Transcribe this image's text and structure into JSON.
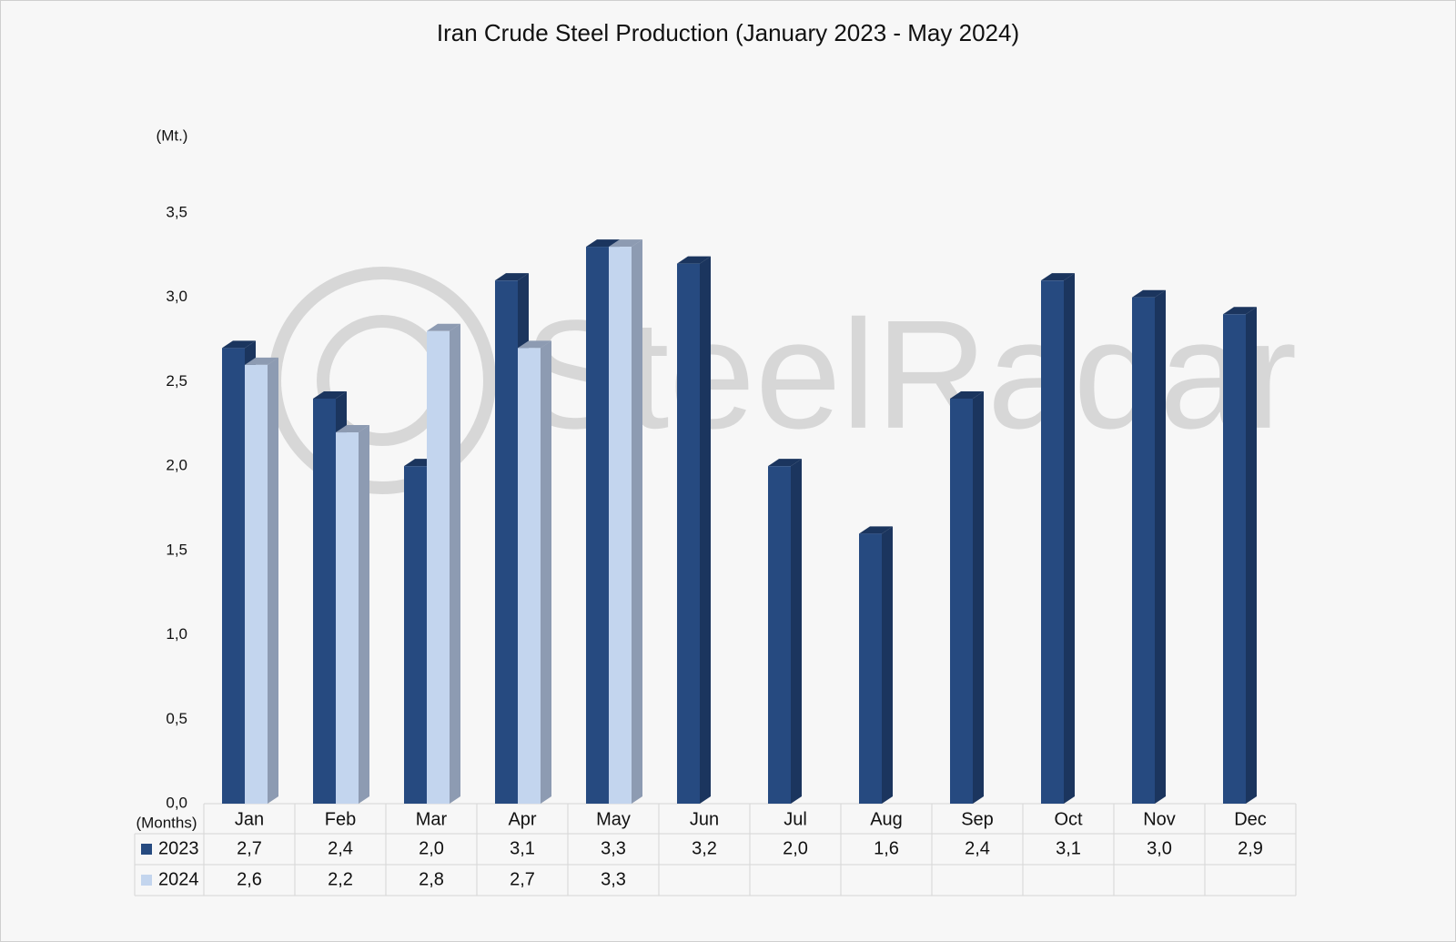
{
  "chart_data": {
    "type": "bar3d",
    "title": "Iran Crude Steel Production (January 2023 - May 2024)",
    "y_axis_label": "(Mt.)",
    "x_axis_label": "(Months)",
    "watermark": "SteelRadar",
    "categories": [
      "Jan",
      "Feb",
      "Mar",
      "Apr",
      "May",
      "Jun",
      "Jul",
      "Aug",
      "Sep",
      "Oct",
      "Nov",
      "Dec"
    ],
    "series": [
      {
        "name": "2023",
        "color": "#264a80",
        "side_color": "#1b355e",
        "values": [
          2.7,
          2.4,
          2.0,
          3.1,
          3.3,
          3.2,
          2.0,
          1.6,
          2.4,
          3.1,
          3.0,
          2.9
        ],
        "value_labels": [
          "2,7",
          "2,4",
          "2,0",
          "3,1",
          "3,3",
          "3,2",
          "2,0",
          "1,6",
          "2,4",
          "3,1",
          "3,0",
          "2,9"
        ]
      },
      {
        "name": "2024",
        "color": "#c3d5ee",
        "side_color": "#8d9bb2",
        "values": [
          2.6,
          2.2,
          2.8,
          2.7,
          3.3,
          null,
          null,
          null,
          null,
          null,
          null,
          null
        ],
        "value_labels": [
          "2,6",
          "2,2",
          "2,8",
          "2,7",
          "3,3",
          null,
          null,
          null,
          null,
          null,
          null,
          null
        ]
      }
    ],
    "ylim": [
      0,
      3.5
    ],
    "yticks": [
      {
        "value": 0,
        "label": "0,0"
      },
      {
        "value": 0.5,
        "label": "0,5"
      },
      {
        "value": 1,
        "label": "1,0"
      },
      {
        "value": 1.5,
        "label": "1,5"
      },
      {
        "value": 2,
        "label": "2,0"
      },
      {
        "value": 2.5,
        "label": "2,5"
      },
      {
        "value": 3,
        "label": "3,0"
      },
      {
        "value": 3.5,
        "label": "3,5"
      }
    ],
    "grid": false
  }
}
